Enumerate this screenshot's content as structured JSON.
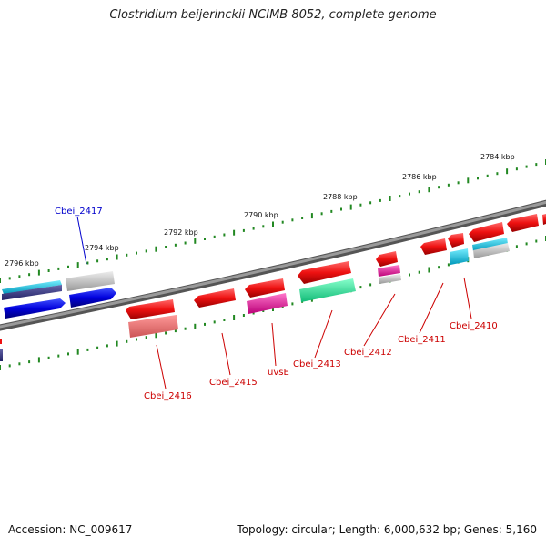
{
  "title": "Clostridium beijerinckii NCIMB 8052, complete genome",
  "accession_label": "Accession: NC_009617",
  "summary_label": "Topology: circular; Length: 6,000,632 bp; Genes: 5,160",
  "ruler_labels": [
    "2796 kbp",
    "2794 kbp",
    "2792 kbp",
    "2790 kbp",
    "2788 kbp",
    "2786 kbp",
    "2784 kbp"
  ],
  "genes": [
    {
      "name": "Cbei_2417",
      "color": "#0000cc"
    },
    {
      "name": "Cbei_2416",
      "color": "#cc0000"
    },
    {
      "name": "Cbei_2415",
      "color": "#cc0000"
    },
    {
      "name": "uvsE",
      "color": "#cc0000"
    },
    {
      "name": "Cbei_2413",
      "color": "#cc0000"
    },
    {
      "name": "Cbei_2412",
      "color": "#cc0000"
    },
    {
      "name": "Cbei_2411",
      "color": "#cc0000"
    },
    {
      "name": "Cbei_2410",
      "color": "#cc0000"
    }
  ],
  "colors": {
    "backbone": "#808080",
    "ticks": "#228822",
    "gene_red": "#ee1111",
    "gene_blue": "#0000dd",
    "gene_cyan": "#22ccee",
    "gene_grey": "#bbbbbb",
    "gene_pink": "#ee2299",
    "gene_green": "#22ee99"
  }
}
